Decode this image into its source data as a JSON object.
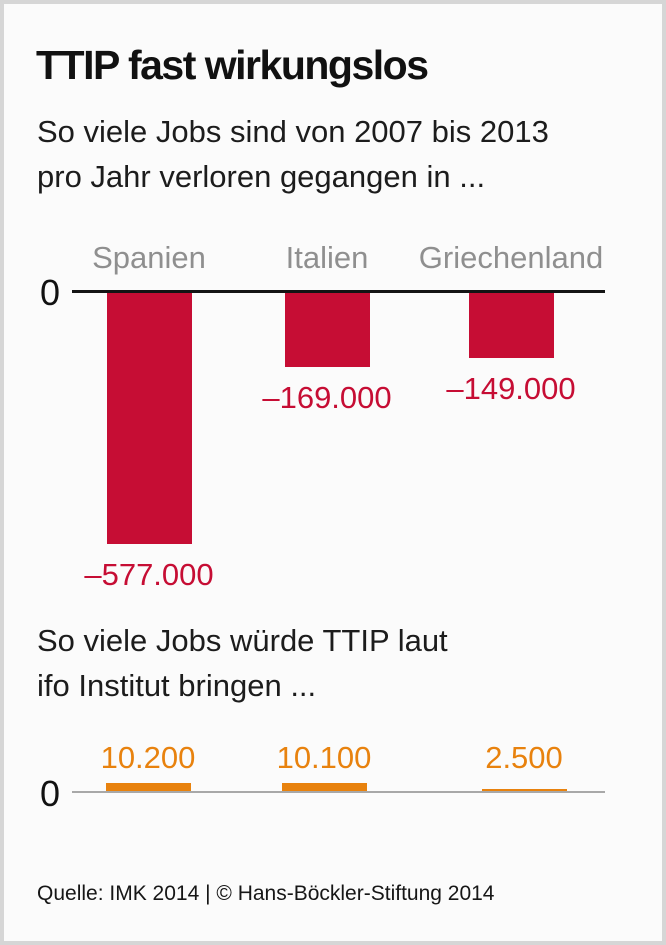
{
  "title": "TTIP fast wirkungslos",
  "intro": {
    "line1": "So viele Jobs sind von 2007 bis 2013",
    "line2": "pro Jahr verloren gegangen in ..."
  },
  "mid_heading": {
    "line1": "So viele Jobs würde TTIP laut",
    "line2": "ifo Institut bringen ..."
  },
  "source": "Quelle: IMK 2014 | © Hans-Böckler-Stiftung 2014",
  "colors": {
    "loss_red": "#C60D34",
    "gain_orange": "#E8820E",
    "category_gray": "#8F8F8F",
    "axis_black": "#141414",
    "axis_gray": "#A8A8A8",
    "background": "#FBFBFB",
    "frame_border": "#D6D6D6"
  },
  "chart_data": [
    {
      "type": "bar",
      "title": "So viele Jobs sind von 2007 bis 2013 pro Jahr verloren gegangen in ...",
      "categories": [
        "Spanien",
        "Italien",
        "Griechenland"
      ],
      "values": [
        -577000,
        -169000,
        -149000
      ],
      "value_labels": [
        "–577.000",
        "–169.000",
        "–149.000"
      ],
      "zero_label": "0",
      "bar_color": "#C60D34",
      "orientation": "columns-below-zero-baseline",
      "axis": {
        "baseline": 0,
        "grid": false,
        "legend": "none"
      }
    },
    {
      "type": "bar",
      "title": "So viele Jobs würde TTIP laut ifo Institut bringen ...",
      "categories": [
        "Spanien",
        "Italien",
        "Griechenland"
      ],
      "values": [
        10200,
        10100,
        2500
      ],
      "value_labels": [
        "10.200",
        "10.100",
        "2.500"
      ],
      "zero_label": "0",
      "bar_color": "#E8820E",
      "orientation": "columns-above-zero-baseline",
      "axis": {
        "baseline": 0,
        "grid": false,
        "legend": "none"
      }
    }
  ]
}
